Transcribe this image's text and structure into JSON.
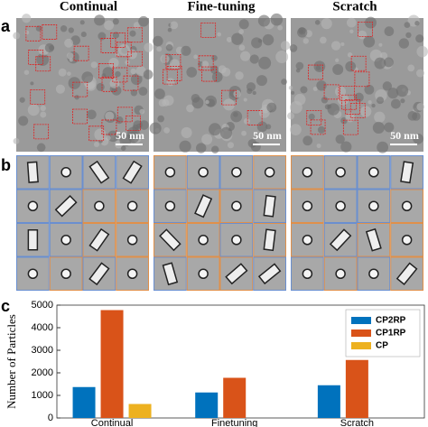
{
  "figure": {
    "columns": [
      "Continual",
      "Fine-tuning",
      "Scratch"
    ],
    "panel_labels": [
      "a",
      "b",
      "c"
    ],
    "scale_bar": "50 nm"
  },
  "chart_data": {
    "type": "bar",
    "ylabel": "Number of Particles",
    "categories": [
      "Continual",
      "Finetuning",
      "Scratch"
    ],
    "series": [
      {
        "name": "CP2RP",
        "color": "#0072bd",
        "values": [
          1370,
          1130,
          1450
        ]
      },
      {
        "name": "CP1RP",
        "color": "#d95319",
        "values": [
          4780,
          1780,
          2570
        ]
      },
      {
        "name": "CP",
        "color": "#edb120",
        "values": [
          620,
          null,
          null
        ]
      }
    ],
    "ylim": [
      0,
      5000
    ],
    "yticks": [
      0,
      1000,
      2000,
      3000,
      4000,
      5000
    ],
    "legend": "upper right"
  }
}
